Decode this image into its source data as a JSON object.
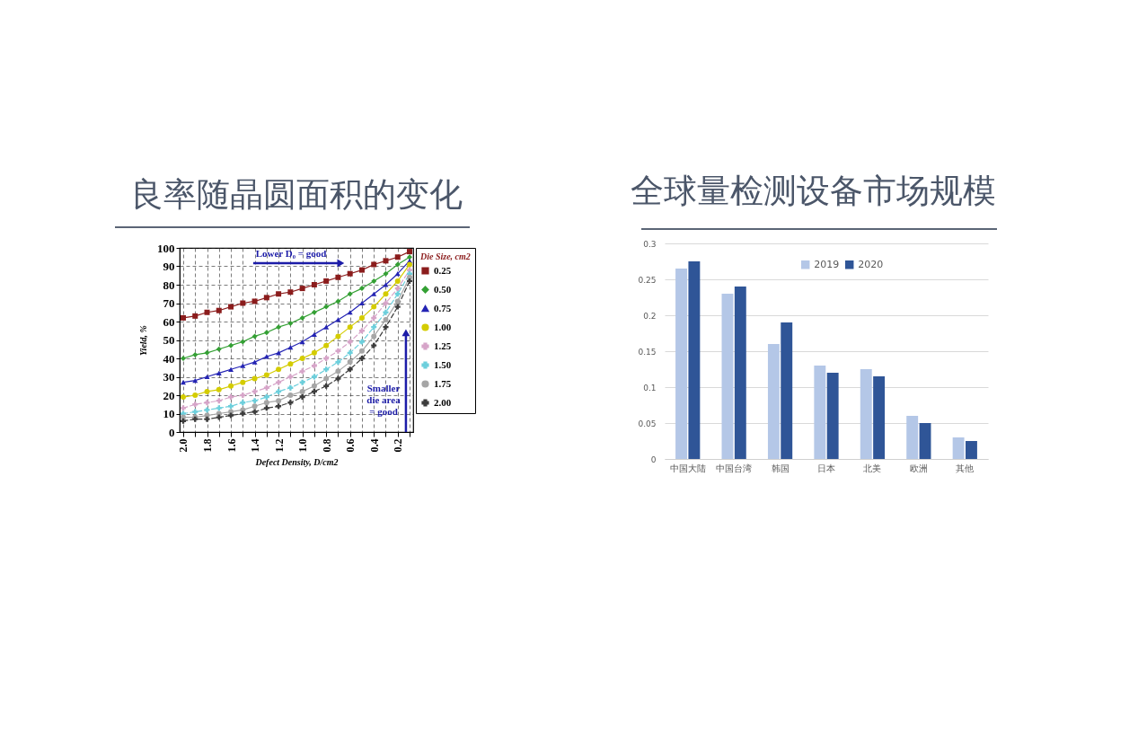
{
  "chart_data": [
    {
      "type": "line",
      "title": "良率随晶圆面积的变化",
      "xlabel": "Defect Density, D/cm2",
      "ylabel": "Yield, %",
      "legend_title": "Die Size, cm2",
      "annotations": [
        "Lower D₀ = good",
        "Smaller die area = good"
      ],
      "x": [
        2,
        1.9,
        1.8,
        1.7,
        1.6,
        1.5,
        1.4,
        1.3,
        1.2,
        1.1,
        1,
        0.9,
        0.8,
        0.7,
        0.6,
        0.5,
        0.4,
        0.3,
        0.2,
        0.1
      ],
      "series": [
        {
          "name": "0.25",
          "color": "#8b1c1c",
          "marker": "square",
          "line_style": "solid",
          "values": [
            62,
            63,
            65,
            66,
            68,
            70,
            71,
            73,
            75,
            76,
            78,
            80,
            82,
            84,
            86,
            88,
            91,
            93,
            95,
            98
          ]
        },
        {
          "name": "0.50",
          "color": "#34a034",
          "marker": "diamond",
          "line_style": "solid",
          "values": [
            40,
            42,
            43,
            45,
            47,
            49,
            52,
            54,
            57,
            59,
            62,
            65,
            68,
            71,
            75,
            78,
            82,
            86,
            91,
            95
          ]
        },
        {
          "name": "0.75",
          "color": "#2424b4",
          "marker": "triangle",
          "line_style": "solid",
          "values": [
            27,
            28,
            30,
            32,
            34,
            36,
            38,
            41,
            43,
            46,
            49,
            53,
            57,
            61,
            65,
            70,
            75,
            80,
            86,
            93
          ]
        },
        {
          "name": "1.00",
          "color": "#d4cc00",
          "marker": "circle",
          "line_style": "solid",
          "values": [
            19,
            20,
            22,
            23,
            25,
            27,
            29,
            31,
            34,
            37,
            40,
            43,
            47,
            52,
            57,
            62,
            68,
            75,
            82,
            91
          ]
        },
        {
          "name": "1.25",
          "color": "#d6a4c8",
          "marker": "cross",
          "line_style": "dashed",
          "values": [
            13,
            15,
            16,
            17,
            19,
            20,
            22,
            24,
            27,
            30,
            33,
            36,
            40,
            44,
            49,
            55,
            62,
            70,
            78,
            88
          ]
        },
        {
          "name": "1.50",
          "color": "#6ccfdc",
          "marker": "cross",
          "line_style": "dashed",
          "values": [
            10,
            11,
            12,
            13,
            14,
            16,
            17,
            19,
            22,
            24,
            27,
            30,
            34,
            38,
            43,
            49,
            57,
            65,
            75,
            86
          ]
        },
        {
          "name": "1.75",
          "color": "#a6a6a6",
          "marker": "circle",
          "line_style": "solid",
          "values": [
            8,
            8,
            9,
            10,
            11,
            12,
            14,
            16,
            17,
            20,
            22,
            25,
            29,
            33,
            38,
            44,
            52,
            61,
            71,
            84
          ]
        },
        {
          "name": "2.00",
          "color": "#3c3c3c",
          "marker": "cross",
          "line_style": "dashed",
          "values": [
            6,
            7,
            7,
            8,
            9,
            10,
            11,
            13,
            14,
            16,
            19,
            22,
            25,
            29,
            34,
            40,
            47,
            57,
            68,
            82
          ]
        }
      ],
      "xlim": [
        2.03,
        0.07
      ],
      "ylim": [
        0,
        100
      ],
      "xticks": [
        {
          "value": 2,
          "label": "2.0"
        },
        {
          "value": 1.9,
          "label": null
        },
        1.8,
        {
          "value": 1.7,
          "label": null
        },
        1.6,
        {
          "value": 1.5,
          "label": null
        },
        1.4,
        {
          "value": 1.3,
          "label": null
        },
        1.2,
        {
          "value": 1.1,
          "label": null
        },
        {
          "value": 1,
          "label": "1.0"
        },
        {
          "value": 0.9,
          "label": null
        },
        0.8,
        {
          "value": 0.7,
          "label": null
        },
        0.6,
        {
          "value": 0.5,
          "label": null
        },
        0.4,
        {
          "value": 0.3,
          "label": null
        },
        0.2,
        {
          "value": 0.1,
          "label": null
        }
      ],
      "yticks": [
        0,
        10,
        20,
        30,
        40,
        50,
        60,
        70,
        80,
        90,
        100
      ],
      "grid": true,
      "legend": "right"
    },
    {
      "type": "bar",
      "title": "全球量检测设备市场规模",
      "categories": [
        "中国大陆",
        "中国台湾",
        "韩国",
        "日本",
        "北美",
        "欧洲",
        "其他"
      ],
      "series": [
        {
          "name": "2019",
          "color": "#b4c7e7",
          "values": [
            0.265,
            0.23,
            0.16,
            0.13,
            0.125,
            0.06,
            0.03
          ]
        },
        {
          "name": "2020",
          "color": "#2f5597",
          "values": [
            0.275,
            0.24,
            0.19,
            0.12,
            0.115,
            0.05,
            0.025
          ]
        }
      ],
      "ylim": [
        0,
        0.3
      ],
      "yticks": [
        0,
        0.05,
        0.1,
        0.15,
        0.2,
        0.25,
        0.3
      ],
      "grid": "y",
      "legend": "top"
    }
  ]
}
